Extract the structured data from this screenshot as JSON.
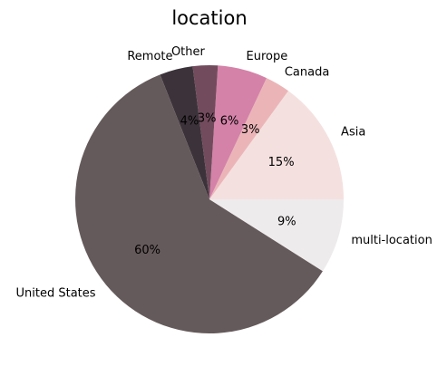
{
  "chart_data": {
    "type": "pie",
    "title": "location",
    "start_angle_deg": 0,
    "direction": "counterclockwise",
    "slices": [
      {
        "label": "Asia",
        "value": 15,
        "pct_label": "15%",
        "color": "#f4e1df"
      },
      {
        "label": "Canada",
        "value": 3,
        "pct_label": "3%",
        "color": "#ebb5b8"
      },
      {
        "label": "Europe",
        "value": 6,
        "pct_label": "6%",
        "color": "#d482a8"
      },
      {
        "label": "Other",
        "value": 3,
        "pct_label": "3%",
        "color": "#724b5c"
      },
      {
        "label": "Remote",
        "value": 4,
        "pct_label": "4%",
        "color": "#3c333a"
      },
      {
        "label": "United States",
        "value": 60,
        "pct_label": "60%",
        "color": "#655a5b"
      },
      {
        "label": "multi-location",
        "value": 9,
        "pct_label": "9%",
        "color": "#eeebec"
      }
    ]
  }
}
